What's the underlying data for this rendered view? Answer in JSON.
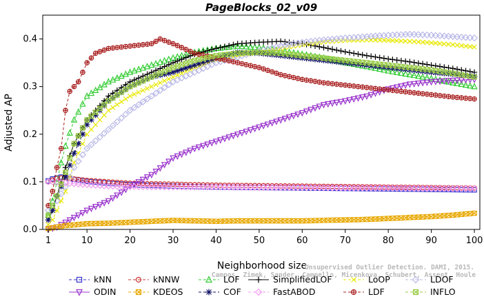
{
  "chart_data": {
    "type": "line",
    "title": "PageBlocks_02_v09",
    "xlabel": "Neighborhood size",
    "ylabel": "Adjusted AP",
    "xlim": [
      1,
      100
    ],
    "ylim": [
      0,
      0.45
    ],
    "x_ticks": [
      1,
      10,
      20,
      30,
      40,
      50,
      60,
      70,
      80,
      90,
      100
    ],
    "y_ticks": [
      0.0,
      0.1,
      0.2,
      0.3,
      0.4
    ],
    "y_tick_labels": [
      "0.0",
      "0.1",
      "0.2",
      "0.3",
      "0.4"
    ],
    "grid": false,
    "legend_placement": "bottom",
    "credit_lines": [
      "Unsupervised Outlier Detection. DAMI, 2015.",
      "Campos, Zimek, Sander, Campello, Micenkova, Schubert, Assent, Houle"
    ],
    "series": [
      {
        "name": "kNN",
        "color": "#3333cc",
        "marker": "square",
        "dash": "4,3",
        "points": [
          [
            1,
            0.102
          ],
          [
            2,
            0.106
          ],
          [
            3,
            0.108
          ],
          [
            4,
            0.11
          ],
          [
            5,
            0.109
          ],
          [
            7,
            0.105
          ],
          [
            10,
            0.101
          ],
          [
            15,
            0.097
          ],
          [
            20,
            0.094
          ],
          [
            30,
            0.091
          ],
          [
            40,
            0.089
          ],
          [
            50,
            0.088
          ],
          [
            60,
            0.087
          ],
          [
            70,
            0.086
          ],
          [
            80,
            0.085
          ],
          [
            90,
            0.084
          ],
          [
            100,
            0.083
          ]
        ]
      },
      {
        "name": "kNNW",
        "color": "#cc3333",
        "marker": "circle",
        "dash": "4,3",
        "points": [
          [
            1,
            0.1
          ],
          [
            2,
            0.104
          ],
          [
            3,
            0.107
          ],
          [
            4,
            0.108
          ],
          [
            5,
            0.108
          ],
          [
            7,
            0.106
          ],
          [
            10,
            0.103
          ],
          [
            15,
            0.1
          ],
          [
            20,
            0.097
          ],
          [
            30,
            0.095
          ],
          [
            40,
            0.093
          ],
          [
            50,
            0.092
          ],
          [
            60,
            0.091
          ],
          [
            70,
            0.09
          ],
          [
            80,
            0.089
          ],
          [
            90,
            0.088
          ],
          [
            100,
            0.087
          ]
        ]
      },
      {
        "name": "LOF",
        "color": "#33cc33",
        "marker": "triangle",
        "dash": "4,3",
        "points": [
          [
            1,
            0.03
          ],
          [
            2,
            0.06
          ],
          [
            3,
            0.1
          ],
          [
            4,
            0.14
          ],
          [
            5,
            0.175
          ],
          [
            7,
            0.23
          ],
          [
            10,
            0.28
          ],
          [
            15,
            0.31
          ],
          [
            20,
            0.33
          ],
          [
            25,
            0.345
          ],
          [
            30,
            0.36
          ],
          [
            35,
            0.372
          ],
          [
            40,
            0.38
          ],
          [
            45,
            0.385
          ],
          [
            50,
            0.382
          ],
          [
            55,
            0.375
          ],
          [
            60,
            0.368
          ],
          [
            65,
            0.36
          ],
          [
            70,
            0.35
          ],
          [
            75,
            0.342
          ],
          [
            80,
            0.333
          ],
          [
            85,
            0.325
          ],
          [
            90,
            0.317
          ],
          [
            95,
            0.308
          ],
          [
            100,
            0.3
          ]
        ]
      },
      {
        "name": "SimplifiedLOF",
        "color": "#000000",
        "marker": "plus",
        "dash": "",
        "points": [
          [
            1,
            0.02
          ],
          [
            2,
            0.04
          ],
          [
            3,
            0.07
          ],
          [
            4,
            0.1
          ],
          [
            5,
            0.13
          ],
          [
            7,
            0.18
          ],
          [
            10,
            0.23
          ],
          [
            15,
            0.28
          ],
          [
            20,
            0.31
          ],
          [
            25,
            0.33
          ],
          [
            30,
            0.35
          ],
          [
            35,
            0.368
          ],
          [
            40,
            0.38
          ],
          [
            45,
            0.39
          ],
          [
            50,
            0.393
          ],
          [
            55,
            0.395
          ],
          [
            60,
            0.39
          ],
          [
            65,
            0.382
          ],
          [
            70,
            0.373
          ],
          [
            75,
            0.365
          ],
          [
            80,
            0.358
          ],
          [
            85,
            0.352
          ],
          [
            90,
            0.345
          ],
          [
            95,
            0.338
          ],
          [
            100,
            0.33
          ]
        ]
      },
      {
        "name": "LoOP",
        "color": "#e8e800",
        "marker": "x",
        "dash": "4,3",
        "points": [
          [
            1,
            0.01
          ],
          [
            2,
            0.02
          ],
          [
            3,
            0.04
          ],
          [
            5,
            0.08
          ],
          [
            7,
            0.14
          ],
          [
            10,
            0.2
          ],
          [
            15,
            0.25
          ],
          [
            20,
            0.28
          ],
          [
            25,
            0.3
          ],
          [
            30,
            0.32
          ],
          [
            35,
            0.34
          ],
          [
            40,
            0.355
          ],
          [
            45,
            0.365
          ],
          [
            50,
            0.372
          ],
          [
            55,
            0.38
          ],
          [
            60,
            0.388
          ],
          [
            65,
            0.394
          ],
          [
            70,
            0.397
          ],
          [
            75,
            0.398
          ],
          [
            80,
            0.397
          ],
          [
            85,
            0.395
          ],
          [
            90,
            0.392
          ],
          [
            95,
            0.388
          ],
          [
            100,
            0.383
          ]
        ]
      },
      {
        "name": "LDOF",
        "color": "#b8b8e8",
        "marker": "diamond",
        "dash": "4,3",
        "points": [
          [
            1,
            0.04
          ],
          [
            3,
            0.06
          ],
          [
            5,
            0.09
          ],
          [
            7,
            0.13
          ],
          [
            10,
            0.17
          ],
          [
            15,
            0.21
          ],
          [
            20,
            0.25
          ],
          [
            25,
            0.28
          ],
          [
            30,
            0.31
          ],
          [
            35,
            0.33
          ],
          [
            40,
            0.35
          ],
          [
            45,
            0.362
          ],
          [
            50,
            0.375
          ],
          [
            55,
            0.385
          ],
          [
            60,
            0.393
          ],
          [
            65,
            0.398
          ],
          [
            70,
            0.402
          ],
          [
            75,
            0.405
          ],
          [
            80,
            0.408
          ],
          [
            85,
            0.41
          ],
          [
            90,
            0.408
          ],
          [
            95,
            0.405
          ],
          [
            100,
            0.402
          ]
        ]
      },
      {
        "name": "ODIN",
        "color": "#9933cc",
        "marker": "triangle-down",
        "dash": "",
        "points": [
          [
            1,
            0.0
          ],
          [
            3,
            0.005
          ],
          [
            5,
            0.015
          ],
          [
            7,
            0.025
          ],
          [
            10,
            0.04
          ],
          [
            15,
            0.06
          ],
          [
            20,
            0.09
          ],
          [
            25,
            0.115
          ],
          [
            30,
            0.15
          ],
          [
            35,
            0.17
          ],
          [
            40,
            0.185
          ],
          [
            45,
            0.2
          ],
          [
            50,
            0.215
          ],
          [
            55,
            0.23
          ],
          [
            60,
            0.245
          ],
          [
            65,
            0.262
          ],
          [
            70,
            0.27
          ],
          [
            75,
            0.28
          ],
          [
            80,
            0.295
          ],
          [
            85,
            0.305
          ],
          [
            90,
            0.31
          ],
          [
            95,
            0.313
          ],
          [
            100,
            0.315
          ]
        ]
      },
      {
        "name": "KDEOS",
        "color": "#e8a800",
        "marker": "square-x",
        "dash": "4,3",
        "points": [
          [
            1,
            0.002
          ],
          [
            5,
            0.008
          ],
          [
            10,
            0.012
          ],
          [
            15,
            0.013
          ],
          [
            20,
            0.015
          ],
          [
            25,
            0.017
          ],
          [
            30,
            0.019
          ],
          [
            35,
            0.018
          ],
          [
            40,
            0.017
          ],
          [
            45,
            0.018
          ],
          [
            50,
            0.018
          ],
          [
            55,
            0.018
          ],
          [
            60,
            0.018
          ],
          [
            65,
            0.019
          ],
          [
            70,
            0.02
          ],
          [
            75,
            0.021
          ],
          [
            80,
            0.023
          ],
          [
            85,
            0.025
          ],
          [
            90,
            0.027
          ],
          [
            95,
            0.03
          ],
          [
            100,
            0.034
          ]
        ]
      },
      {
        "name": "COF",
        "color": "#111166",
        "marker": "star",
        "dash": "4,3",
        "points": [
          [
            1,
            0.02
          ],
          [
            2,
            0.04
          ],
          [
            3,
            0.07
          ],
          [
            4,
            0.09
          ],
          [
            5,
            0.11
          ],
          [
            7,
            0.16
          ],
          [
            10,
            0.22
          ],
          [
            15,
            0.27
          ],
          [
            20,
            0.3
          ],
          [
            25,
            0.32
          ],
          [
            30,
            0.33
          ],
          [
            35,
            0.345
          ],
          [
            40,
            0.36
          ],
          [
            45,
            0.372
          ],
          [
            50,
            0.37
          ],
          [
            55,
            0.365
          ],
          [
            60,
            0.36
          ],
          [
            65,
            0.355
          ],
          [
            70,
            0.35
          ],
          [
            75,
            0.345
          ],
          [
            80,
            0.34
          ],
          [
            85,
            0.335
          ],
          [
            90,
            0.33
          ],
          [
            95,
            0.326
          ],
          [
            100,
            0.322
          ]
        ]
      },
      {
        "name": "FastABOD",
        "color": "#ee99ee",
        "marker": "diamond",
        "dash": "4,3",
        "points": [
          [
            1,
            0.1
          ],
          [
            2,
            0.1
          ],
          [
            3,
            0.099
          ],
          [
            5,
            0.098
          ],
          [
            7,
            0.096
          ],
          [
            10,
            0.094
          ],
          [
            15,
            0.091
          ],
          [
            20,
            0.09
          ],
          [
            30,
            0.089
          ],
          [
            40,
            0.089
          ],
          [
            50,
            0.088
          ],
          [
            60,
            0.088
          ],
          [
            70,
            0.087
          ],
          [
            80,
            0.087
          ],
          [
            90,
            0.086
          ],
          [
            100,
            0.086
          ]
        ]
      },
      {
        "name": "LDF",
        "color": "#aa2222",
        "marker": "circle-plus",
        "dash": "4,3",
        "points": [
          [
            1,
            0.05
          ],
          [
            2,
            0.08
          ],
          [
            3,
            0.13
          ],
          [
            4,
            0.17
          ],
          [
            5,
            0.25
          ],
          [
            6,
            0.29
          ],
          [
            7,
            0.3
          ],
          [
            8,
            0.31
          ],
          [
            9,
            0.33
          ],
          [
            10,
            0.35
          ],
          [
            12,
            0.37
          ],
          [
            15,
            0.38
          ],
          [
            20,
            0.385
          ],
          [
            25,
            0.39
          ],
          [
            27,
            0.4
          ],
          [
            30,
            0.39
          ],
          [
            35,
            0.37
          ],
          [
            40,
            0.36
          ],
          [
            45,
            0.35
          ],
          [
            50,
            0.34
          ],
          [
            55,
            0.325
          ],
          [
            60,
            0.315
          ],
          [
            65,
            0.308
          ],
          [
            70,
            0.303
          ],
          [
            75,
            0.298
          ],
          [
            80,
            0.293
          ],
          [
            85,
            0.288
          ],
          [
            90,
            0.283
          ],
          [
            95,
            0.278
          ],
          [
            100,
            0.274
          ]
        ]
      },
      {
        "name": "INFLO",
        "color": "#99cc44",
        "marker": "square-x",
        "dash": "4,3",
        "points": [
          [
            1,
            0.03
          ],
          [
            3,
            0.07
          ],
          [
            5,
            0.12
          ],
          [
            7,
            0.18
          ],
          [
            10,
            0.23
          ],
          [
            15,
            0.27
          ],
          [
            20,
            0.3
          ],
          [
            25,
            0.32
          ],
          [
            30,
            0.34
          ],
          [
            35,
            0.355
          ],
          [
            40,
            0.365
          ],
          [
            45,
            0.37
          ],
          [
            50,
            0.372
          ],
          [
            55,
            0.37
          ],
          [
            60,
            0.365
          ],
          [
            65,
            0.36
          ],
          [
            70,
            0.355
          ],
          [
            75,
            0.35
          ],
          [
            80,
            0.345
          ],
          [
            85,
            0.34
          ],
          [
            90,
            0.335
          ],
          [
            95,
            0.328
          ],
          [
            100,
            0.32
          ]
        ]
      }
    ],
    "legend_order": [
      "kNN",
      "kNNW",
      "LOF",
      "SimplifiedLOF",
      "LoOP",
      "LDOF",
      "ODIN",
      "KDEOS",
      "COF",
      "FastABOD",
      "LDF",
      "INFLO"
    ]
  }
}
